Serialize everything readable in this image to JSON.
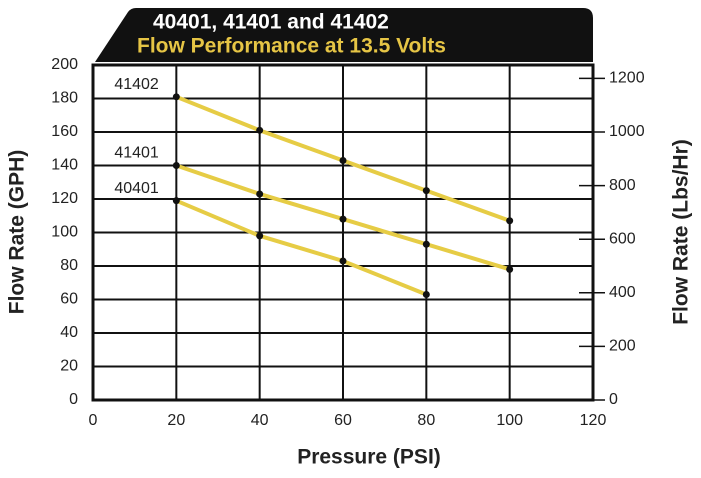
{
  "chart_data": {
    "type": "line",
    "title": "40401, 41401 and 41402",
    "subtitle": "Flow Performance at 13.5 Volts",
    "x_label": "Pressure (PSI)",
    "y_label": "Flow Rate (GPH)",
    "y2_label": "Flow Rate (Lbs/Hr)",
    "x": [
      20,
      40,
      60,
      80,
      100
    ],
    "series": [
      {
        "name": "41402",
        "color": "#e6cc45",
        "values": [
          181,
          161,
          143,
          125,
          107
        ]
      },
      {
        "name": "41401",
        "color": "#e6cc45",
        "values": [
          140,
          123,
          108,
          93,
          78
        ]
      },
      {
        "name": "40401",
        "color": "#e6cc45",
        "values": [
          119,
          98,
          83,
          63,
          null
        ]
      }
    ],
    "xlim": [
      0,
      120
    ],
    "xticks": [
      0,
      20,
      40,
      60,
      80,
      100,
      120
    ],
    "ylim": [
      0,
      200
    ],
    "yticks": [
      0,
      20,
      40,
      60,
      80,
      100,
      120,
      140,
      160,
      180,
      200
    ],
    "y2lim": [
      0,
      1250
    ],
    "y2ticks": [
      0,
      200,
      400,
      600,
      800,
      1000,
      1200
    ],
    "grid": true
  }
}
